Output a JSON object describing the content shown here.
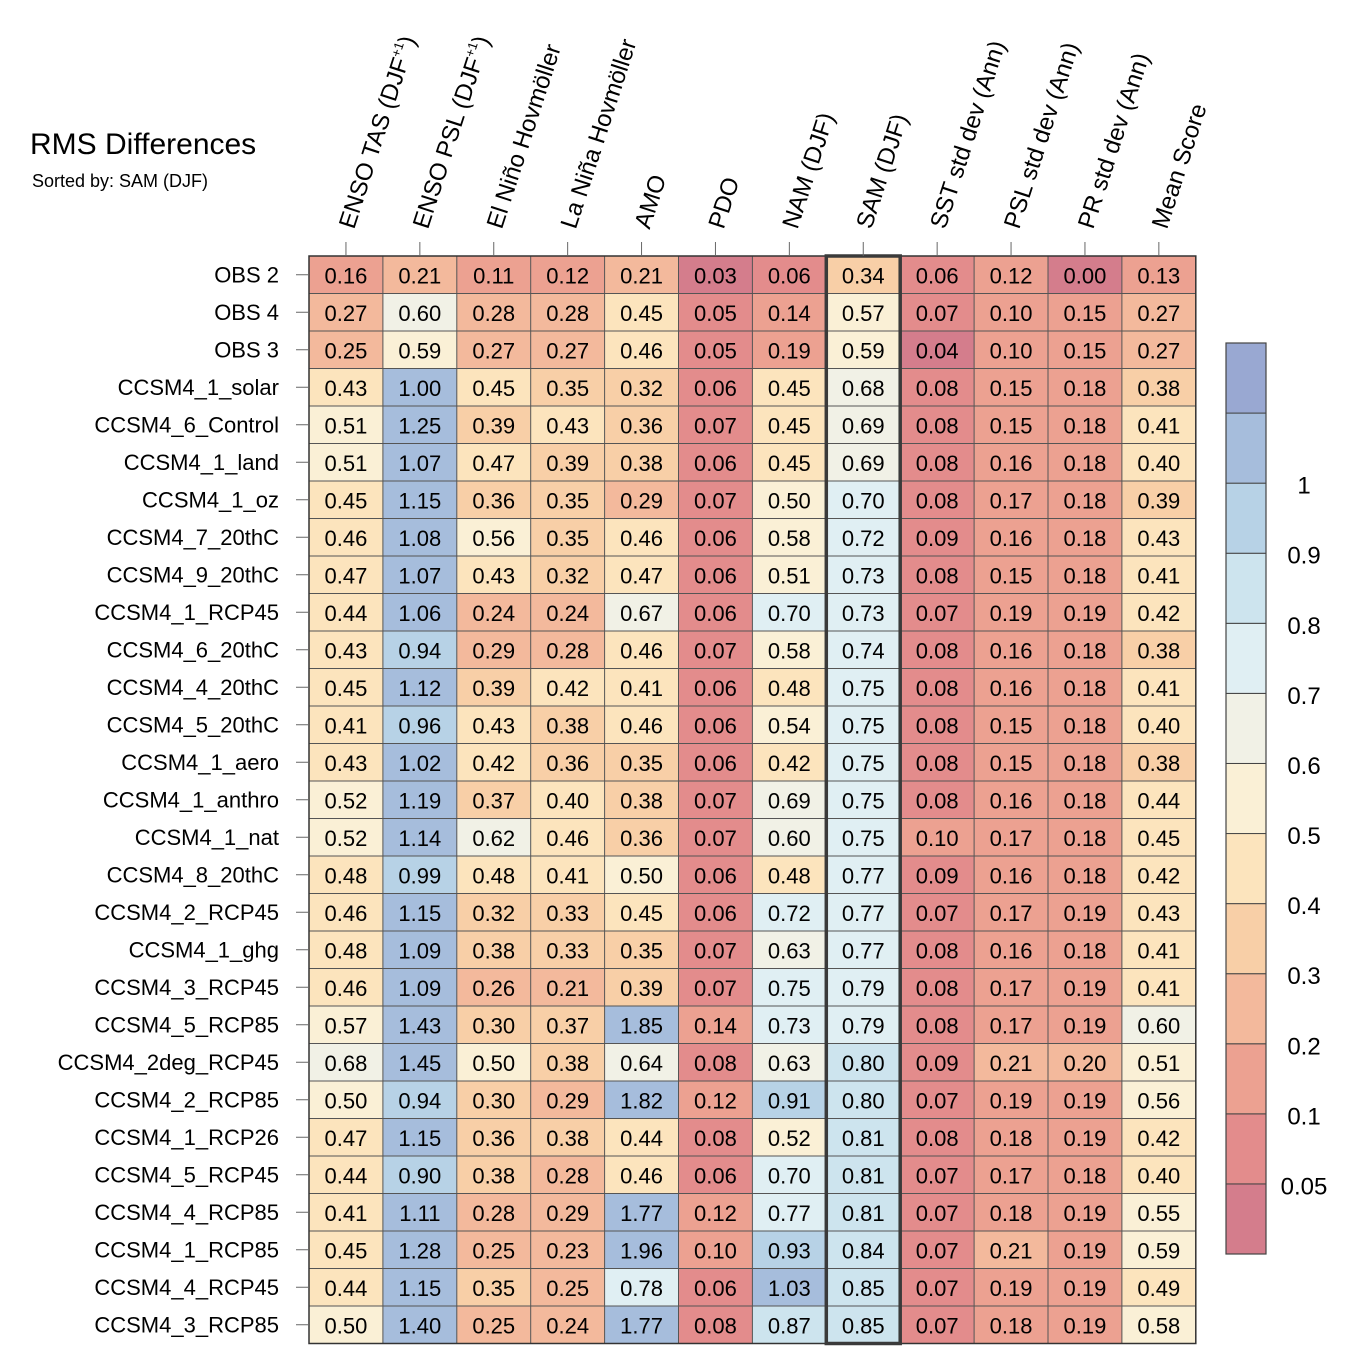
{
  "chart_data": {
    "type": "heatmap",
    "title": "RMS Differences",
    "subtitle": "Sorted by: SAM (DJF)",
    "sorted_column": "SAM (DJF)",
    "columns": [
      {
        "label": "ENSO TAS (DJF",
        "sup": "+1",
        "close": ")"
      },
      {
        "label": "ENSO PSL (DJF",
        "sup": "+1",
        "close": ")"
      },
      {
        "label": "El Niño Hovmöller",
        "sup": "",
        "close": ""
      },
      {
        "label": "La Niña Hovmöller",
        "sup": "",
        "close": ""
      },
      {
        "label": "AMO",
        "sup": "",
        "close": ""
      },
      {
        "label": "PDO",
        "sup": "",
        "close": ""
      },
      {
        "label": "NAM (DJF)",
        "sup": "",
        "close": ""
      },
      {
        "label": "SAM (DJF)",
        "sup": "",
        "close": ""
      },
      {
        "label": "SST std dev (Ann)",
        "sup": "",
        "close": ""
      },
      {
        "label": "PSL std dev (Ann)",
        "sup": "",
        "close": ""
      },
      {
        "label": "PR std dev (Ann)",
        "sup": "",
        "close": ""
      },
      {
        "label": "Mean Score",
        "sup": "",
        "close": ""
      }
    ],
    "rows": [
      {
        "name": "OBS 2",
        "values": [
          "0.16",
          "0.21",
          "0.11",
          "0.12",
          "0.21",
          "0.03",
          "0.06",
          "0.34",
          "0.06",
          "0.12",
          "0.00",
          "0.13"
        ]
      },
      {
        "name": "OBS 4",
        "values": [
          "0.27",
          "0.60",
          "0.28",
          "0.28",
          "0.45",
          "0.05",
          "0.14",
          "0.57",
          "0.07",
          "0.10",
          "0.15",
          "0.27"
        ]
      },
      {
        "name": "OBS 3",
        "values": [
          "0.25",
          "0.59",
          "0.27",
          "0.27",
          "0.46",
          "0.05",
          "0.19",
          "0.59",
          "0.04",
          "0.10",
          "0.15",
          "0.27"
        ]
      },
      {
        "name": "CCSM4_1_solar",
        "values": [
          "0.43",
          "1.00",
          "0.45",
          "0.35",
          "0.32",
          "0.06",
          "0.45",
          "0.68",
          "0.08",
          "0.15",
          "0.18",
          "0.38"
        ]
      },
      {
        "name": "CCSM4_6_Control",
        "values": [
          "0.51",
          "1.25",
          "0.39",
          "0.43",
          "0.36",
          "0.07",
          "0.45",
          "0.69",
          "0.08",
          "0.15",
          "0.18",
          "0.41"
        ]
      },
      {
        "name": "CCSM4_1_land",
        "values": [
          "0.51",
          "1.07",
          "0.47",
          "0.39",
          "0.38",
          "0.06",
          "0.45",
          "0.69",
          "0.08",
          "0.16",
          "0.18",
          "0.40"
        ]
      },
      {
        "name": "CCSM4_1_oz",
        "values": [
          "0.45",
          "1.15",
          "0.36",
          "0.35",
          "0.29",
          "0.07",
          "0.50",
          "0.70",
          "0.08",
          "0.17",
          "0.18",
          "0.39"
        ]
      },
      {
        "name": "CCSM4_7_20thC",
        "values": [
          "0.46",
          "1.08",
          "0.56",
          "0.35",
          "0.46",
          "0.06",
          "0.58",
          "0.72",
          "0.09",
          "0.16",
          "0.18",
          "0.43"
        ]
      },
      {
        "name": "CCSM4_9_20thC",
        "values": [
          "0.47",
          "1.07",
          "0.43",
          "0.32",
          "0.47",
          "0.06",
          "0.51",
          "0.73",
          "0.08",
          "0.15",
          "0.18",
          "0.41"
        ]
      },
      {
        "name": "CCSM4_1_RCP45",
        "values": [
          "0.44",
          "1.06",
          "0.24",
          "0.24",
          "0.67",
          "0.06",
          "0.70",
          "0.73",
          "0.07",
          "0.19",
          "0.19",
          "0.42"
        ]
      },
      {
        "name": "CCSM4_6_20thC",
        "values": [
          "0.43",
          "0.94",
          "0.29",
          "0.28",
          "0.46",
          "0.07",
          "0.58",
          "0.74",
          "0.08",
          "0.16",
          "0.18",
          "0.38"
        ]
      },
      {
        "name": "CCSM4_4_20thC",
        "values": [
          "0.45",
          "1.12",
          "0.39",
          "0.42",
          "0.41",
          "0.06",
          "0.48",
          "0.75",
          "0.08",
          "0.16",
          "0.18",
          "0.41"
        ]
      },
      {
        "name": "CCSM4_5_20thC",
        "values": [
          "0.41",
          "0.96",
          "0.43",
          "0.38",
          "0.46",
          "0.06",
          "0.54",
          "0.75",
          "0.08",
          "0.15",
          "0.18",
          "0.40"
        ]
      },
      {
        "name": "CCSM4_1_aero",
        "values": [
          "0.43",
          "1.02",
          "0.42",
          "0.36",
          "0.35",
          "0.06",
          "0.42",
          "0.75",
          "0.08",
          "0.15",
          "0.18",
          "0.38"
        ]
      },
      {
        "name": "CCSM4_1_anthro",
        "values": [
          "0.52",
          "1.19",
          "0.37",
          "0.40",
          "0.38",
          "0.07",
          "0.69",
          "0.75",
          "0.08",
          "0.16",
          "0.18",
          "0.44"
        ]
      },
      {
        "name": "CCSM4_1_nat",
        "values": [
          "0.52",
          "1.14",
          "0.62",
          "0.46",
          "0.36",
          "0.07",
          "0.60",
          "0.75",
          "0.10",
          "0.17",
          "0.18",
          "0.45"
        ]
      },
      {
        "name": "CCSM4_8_20thC",
        "values": [
          "0.48",
          "0.99",
          "0.48",
          "0.41",
          "0.50",
          "0.06",
          "0.48",
          "0.77",
          "0.09",
          "0.16",
          "0.18",
          "0.42"
        ]
      },
      {
        "name": "CCSM4_2_RCP45",
        "values": [
          "0.46",
          "1.15",
          "0.32",
          "0.33",
          "0.45",
          "0.06",
          "0.72",
          "0.77",
          "0.07",
          "0.17",
          "0.19",
          "0.43"
        ]
      },
      {
        "name": "CCSM4_1_ghg",
        "values": [
          "0.48",
          "1.09",
          "0.38",
          "0.33",
          "0.35",
          "0.07",
          "0.63",
          "0.77",
          "0.08",
          "0.16",
          "0.18",
          "0.41"
        ]
      },
      {
        "name": "CCSM4_3_RCP45",
        "values": [
          "0.46",
          "1.09",
          "0.26",
          "0.21",
          "0.39",
          "0.07",
          "0.75",
          "0.79",
          "0.08",
          "0.17",
          "0.19",
          "0.41"
        ]
      },
      {
        "name": "CCSM4_5_RCP85",
        "values": [
          "0.57",
          "1.43",
          "0.30",
          "0.37",
          "1.85",
          "0.14",
          "0.73",
          "0.79",
          "0.08",
          "0.17",
          "0.19",
          "0.60"
        ]
      },
      {
        "name": "CCSM4_2deg_RCP45",
        "values": [
          "0.68",
          "1.45",
          "0.50",
          "0.38",
          "0.64",
          "0.08",
          "0.63",
          "0.80",
          "0.09",
          "0.21",
          "0.20",
          "0.51"
        ]
      },
      {
        "name": "CCSM4_2_RCP85",
        "values": [
          "0.50",
          "0.94",
          "0.30",
          "0.29",
          "1.82",
          "0.12",
          "0.91",
          "0.80",
          "0.07",
          "0.19",
          "0.19",
          "0.56"
        ]
      },
      {
        "name": "CCSM4_1_RCP26",
        "values": [
          "0.47",
          "1.15",
          "0.36",
          "0.38",
          "0.44",
          "0.08",
          "0.52",
          "0.81",
          "0.08",
          "0.18",
          "0.19",
          "0.42"
        ]
      },
      {
        "name": "CCSM4_5_RCP45",
        "values": [
          "0.44",
          "0.90",
          "0.38",
          "0.28",
          "0.46",
          "0.06",
          "0.70",
          "0.81",
          "0.07",
          "0.17",
          "0.18",
          "0.40"
        ]
      },
      {
        "name": "CCSM4_4_RCP85",
        "values": [
          "0.41",
          "1.11",
          "0.28",
          "0.29",
          "1.77",
          "0.12",
          "0.77",
          "0.81",
          "0.07",
          "0.18",
          "0.19",
          "0.55"
        ]
      },
      {
        "name": "CCSM4_1_RCP85",
        "values": [
          "0.45",
          "1.28",
          "0.25",
          "0.23",
          "1.96",
          "0.10",
          "0.93",
          "0.84",
          "0.07",
          "0.21",
          "0.19",
          "0.59"
        ]
      },
      {
        "name": "CCSM4_4_RCP45",
        "values": [
          "0.44",
          "1.15",
          "0.35",
          "0.25",
          "0.78",
          "0.06",
          "1.03",
          "0.85",
          "0.07",
          "0.19",
          "0.19",
          "0.49"
        ]
      },
      {
        "name": "CCSM4_3_RCP85",
        "values": [
          "0.50",
          "1.40",
          "0.25",
          "0.24",
          "1.77",
          "0.08",
          "0.87",
          "0.85",
          "0.07",
          "0.18",
          "0.19",
          "0.58"
        ]
      }
    ],
    "colorbar": {
      "levels": [
        0.05,
        0.1,
        0.2,
        0.3,
        0.4,
        0.5,
        0.6,
        0.7,
        0.8,
        0.9,
        1
      ],
      "tick_labels": [
        "0.05",
        "0.1",
        "0.2",
        "0.3",
        "0.4",
        "0.5",
        "0.6",
        "0.7",
        "0.8",
        "0.9",
        "1"
      ],
      "colors": [
        "#d47d8c",
        "#e38c8c",
        "#eca191",
        "#f3b99c",
        "#f8cfa7",
        "#fce4bd",
        "#faf0d6",
        "#f1f1e6",
        "#e0eff3",
        "#cde4ee",
        "#b7d2e6",
        "#a6bddc",
        "#99a8d2"
      ]
    }
  }
}
